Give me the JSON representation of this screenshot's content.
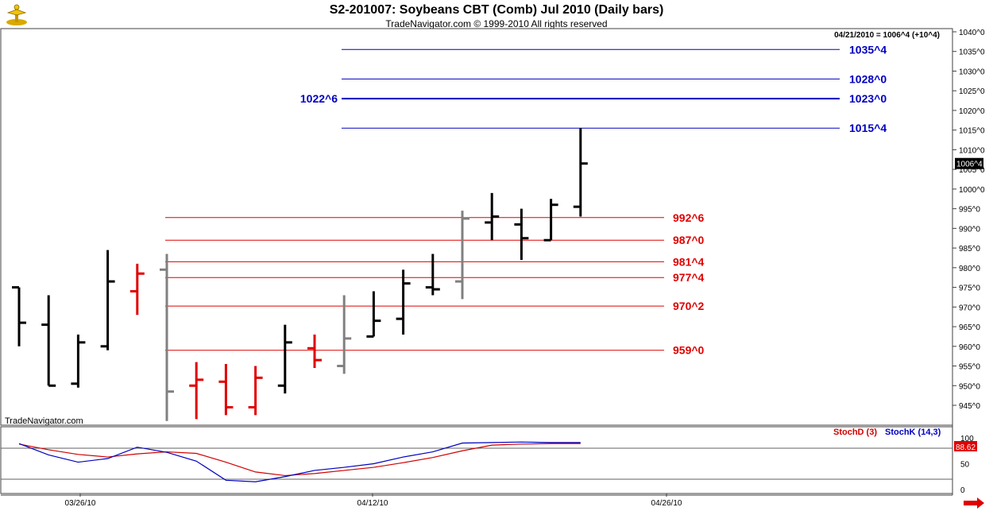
{
  "header": {
    "title": "S2-201007:  Soybeans CBT (Comb) Jul 2010  (Daily bars)",
    "subtitle": "TradeNavigator.com © 1999-2010 All rights reserved",
    "status": "04/21/2010 = 1006^4 (+10^4)",
    "watermark": "TradeNavigator.com"
  },
  "colors": {
    "up": "#000000",
    "down": "#e00000",
    "neutral": "#808080",
    "upper_lines": "#0000c0",
    "lower_lines": "#e00000",
    "stochD": "#d00000",
    "stochK": "#0000c0"
  },
  "chart_data": [
    {
      "type": "ohlc",
      "title": "S2-201007:  Soybeans CBT (Comb) Jul 2010  (Daily bars)",
      "ylim": [
        940,
        1041
      ],
      "y_ticks": [
        "945^0",
        "950^0",
        "955^0",
        "960^0",
        "965^0",
        "970^0",
        "975^0",
        "980^0",
        "985^0",
        "990^0",
        "995^0",
        "1000^0",
        "1005^0",
        "1010^0",
        "1015^0",
        "1020^0",
        "1025^0",
        "1030^0",
        "1035^0",
        "1040^0"
      ],
      "x_ticks": [
        "03/26/10",
        "04/12/10",
        "04/26/10"
      ],
      "last_price_label": "1006^4",
      "bars": [
        {
          "o": 975.0,
          "h": 975.0,
          "l": 960.0,
          "c": 966.0,
          "color": "up"
        },
        {
          "o": 965.5,
          "h": 973.0,
          "l": 950.0,
          "c": 950.0,
          "color": "up"
        },
        {
          "o": 950.5,
          "h": 963.0,
          "l": 949.5,
          "c": 961.0,
          "color": "up"
        },
        {
          "o": 960.0,
          "h": 984.5,
          "l": 959.0,
          "c": 976.5,
          "color": "up"
        },
        {
          "o": 974.0,
          "h": 981.0,
          "l": 968.0,
          "c": 978.5,
          "color": "down"
        },
        {
          "o": 979.5,
          "h": 983.5,
          "l": 941.0,
          "c": 948.5,
          "color": "neutral"
        },
        {
          "o": 950.0,
          "h": 956.0,
          "l": 941.5,
          "c": 951.5,
          "color": "down"
        },
        {
          "o": 951.0,
          "h": 955.5,
          "l": 942.5,
          "c": 944.5,
          "color": "down"
        },
        {
          "o": 944.5,
          "h": 955.0,
          "l": 942.5,
          "c": 952.0,
          "color": "down"
        },
        {
          "o": 950.0,
          "h": 965.5,
          "l": 948.0,
          "c": 961.0,
          "color": "up"
        },
        {
          "o": 959.5,
          "h": 963.0,
          "l": 954.5,
          "c": 956.5,
          "color": "down"
        },
        {
          "o": 955.0,
          "h": 973.0,
          "l": 953.0,
          "c": 962.0,
          "color": "neutral"
        },
        {
          "o": 962.5,
          "h": 974.0,
          "l": 962.5,
          "c": 966.5,
          "color": "up"
        },
        {
          "o": 967.0,
          "h": 979.5,
          "l": 963.0,
          "c": 976.0,
          "color": "up"
        },
        {
          "o": 975.0,
          "h": 983.5,
          "l": 973.0,
          "c": 974.5,
          "color": "up"
        },
        {
          "o": 976.5,
          "h": 994.5,
          "l": 972.0,
          "c": 992.5,
          "color": "neutral"
        },
        {
          "o": 991.5,
          "h": 999.0,
          "l": 987.0,
          "c": 993.0,
          "color": "up"
        },
        {
          "o": 991.0,
          "h": 995.0,
          "l": 982.0,
          "c": 987.5,
          "color": "up"
        },
        {
          "o": 987.0,
          "h": 997.5,
          "l": 987.0,
          "c": 996.0,
          "color": "up"
        },
        {
          "o": 995.5,
          "h": 1015.5,
          "l": 993.0,
          "c": 1006.5,
          "color": "up"
        }
      ],
      "upper_lines": [
        {
          "label": "1035^4",
          "value": 1035.5
        },
        {
          "label": "1028^0",
          "value": 1028.0
        },
        {
          "label": "1023^0",
          "value": 1023.0,
          "left_label": "1022^6"
        },
        {
          "label": "1015^4",
          "value": 1015.5
        }
      ],
      "lower_lines": [
        {
          "label": "992^6",
          "value": 992.75
        },
        {
          "label": "987^0",
          "value": 987.0
        },
        {
          "label": "981^4",
          "value": 981.5
        },
        {
          "label": "977^4",
          "value": 977.5
        },
        {
          "label": "970^2",
          "value": 970.25
        },
        {
          "label": "959^0",
          "value": 959.0
        }
      ]
    },
    {
      "type": "line",
      "title": "",
      "legend": [
        "StochD (3)",
        "StochK (14,3)"
      ],
      "ylim": [
        0,
        100
      ],
      "y_ticks": [
        "0",
        "50",
        "100"
      ],
      "reference_lines": [
        80,
        20
      ],
      "last_value_label": "88.62",
      "series": [
        {
          "name": "StochD (3)",
          "values": [
            88,
            77,
            68,
            63,
            69,
            73,
            70,
            53,
            34,
            27,
            31,
            37,
            43,
            52,
            62,
            75,
            86,
            88,
            89,
            89
          ]
        },
        {
          "name": "StochK (14,3)",
          "values": [
            89,
            67,
            53,
            60,
            82,
            72,
            55,
            18,
            15,
            25,
            37,
            43,
            50,
            63,
            73,
            90,
            91,
            92,
            91,
            91
          ]
        }
      ]
    }
  ]
}
